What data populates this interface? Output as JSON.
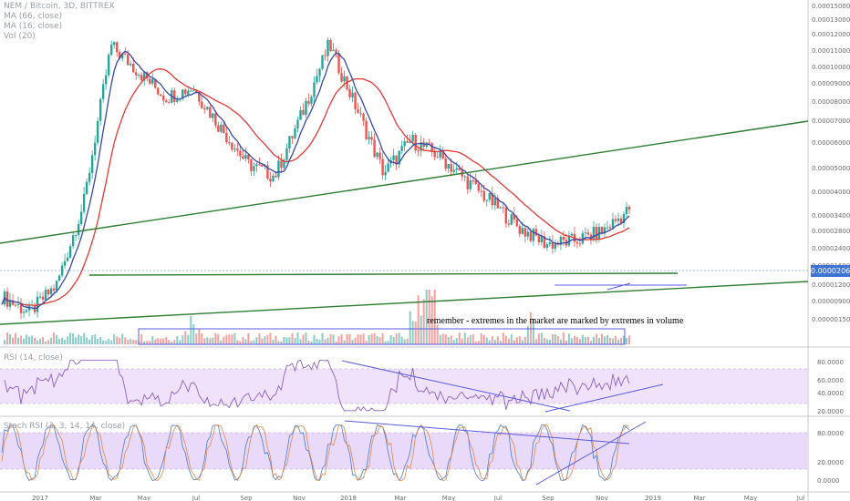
{
  "header": {
    "symbol_line": "NEM / Bitcoin, 3D, BITTREX",
    "indicators": [
      "MA (66, close)",
      "MA (16, close)",
      "Vol (20)"
    ]
  },
  "panes": {
    "rsi_label": "RSI (14, close)",
    "stoch_label": "Stoch RSI (3, 3, 14, 14, close)"
  },
  "current_price": "0.00002060",
  "annotation": "remember - extremes in the market are marked by extremes in volume",
  "colors": {
    "up": "#26a69a",
    "down": "#ef5350",
    "ma66": "#e53935",
    "ma16": "#3949ab",
    "trendline": "#2e7d32",
    "drawing": "#5a5ae0",
    "band": "#e8d6f8"
  },
  "chart_data": [
    {
      "type": "candlestick",
      "title": "NEM / Bitcoin, 3D, BITTREX",
      "x_tick_labels": [
        "2017",
        "Mar",
        "May",
        "Jul",
        "Sep",
        "Nov",
        "2018",
        "Mar",
        "May",
        "Jul",
        "Sep",
        "Nov",
        "2019",
        "Mar",
        "May",
        "Jul"
      ],
      "price_axis_labels": [
        "0.00015000",
        "0.00013000",
        "0.00012000",
        "0.00011000",
        "0.00010000",
        "0.00009000",
        "0.00008000",
        "0.00007000",
        "0.00006000",
        "0.00005000",
        "0.00004000",
        "0.00003400",
        "0.00002800",
        "0.00002400",
        "0.00001600",
        "0.00001200",
        "0.00000900",
        "0.00000150"
      ],
      "last_price": 2.06e-05,
      "close_path": [
        [
          "2017-01",
          8.5e-06
        ],
        [
          "2017-02",
          7.2e-06
        ],
        [
          "2017-03",
          9.5e-06
        ],
        [
          "2017-04",
          2.2e-05
        ],
        [
          "2017-05",
          0.00011
        ],
        [
          "2017-06",
          8.5e-05
        ],
        [
          "2017-07",
          6.5e-05
        ],
        [
          "2017-08",
          7.2e-05
        ],
        [
          "2017-09",
          4.8e-05
        ],
        [
          "2017-10",
          3.3e-05
        ],
        [
          "2017-11",
          2.9e-05
        ],
        [
          "2017-12",
          5.5e-05
        ],
        [
          "2018-01",
          0.000112
        ],
        [
          "2018-02",
          5.8e-05
        ],
        [
          "2018-03",
          3e-05
        ],
        [
          "2018-04",
          4.2e-05
        ],
        [
          "2018-05",
          3.6e-05
        ],
        [
          "2018-06",
          2.8e-05
        ],
        [
          "2018-07",
          2.2e-05
        ],
        [
          "2018-08",
          1.7e-05
        ],
        [
          "2018-09",
          1.45e-05
        ],
        [
          "2018-10",
          1.5e-05
        ],
        [
          "2018-11",
          1.65e-05
        ],
        [
          "2018-12",
          2.06e-05
        ]
      ],
      "series": [
        {
          "name": "MA (66, close)"
        },
        {
          "name": "MA (16, close)"
        },
        {
          "name": "Vol (20)"
        }
      ]
    },
    {
      "type": "line",
      "title": "RSI (14, close)",
      "y_tick_labels": [
        "80.0000",
        "60.0000",
        "40.0000",
        "20.0000"
      ],
      "band": [
        30,
        70
      ],
      "ylim": [
        15,
        95
      ]
    },
    {
      "type": "line",
      "title": "Stoch RSI (3, 3, 14, 14, close)",
      "y_tick_labels": [
        "80.0000",
        "20.0000",
        "0.0000"
      ],
      "band": [
        20,
        80
      ],
      "ylim": [
        0,
        100
      ]
    }
  ]
}
